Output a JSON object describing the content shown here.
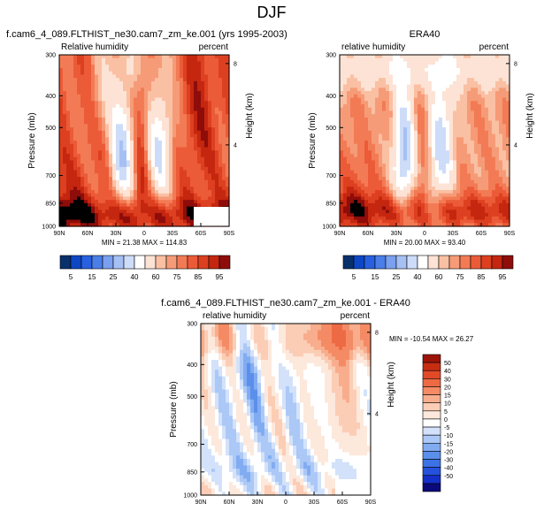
{
  "figure_title": "DJF",
  "palettes": {
    "abs": [
      "#08306b",
      "#0d47c4",
      "#2860e0",
      "#4a7fe8",
      "#7aa0ef",
      "#a6c0f4",
      "#cddcf8",
      "#ffffff",
      "#fde3d5",
      "#fac0a3",
      "#f69b77",
      "#f27b55",
      "#ec5b38",
      "#dd4020",
      "#c4260f",
      "#8e0d0a"
    ],
    "diff": [
      "#0a0a7a",
      "#1530c8",
      "#2452dd",
      "#3c72e6",
      "#5b8fec",
      "#82acf1",
      "#abc8f6",
      "#d3e2fa",
      "#ffffff",
      "#fde8dc",
      "#fbcdb5",
      "#f8ad8d",
      "#f48b65",
      "#ee6a44",
      "#e24a27",
      "#c82d12",
      "#9c1408"
    ]
  },
  "panels": [
    {
      "id": "model",
      "title_left": "f.cam6_4_089.FLTHIST_ne30.cam7_zm_ke.001 (yrs 1995-2003)",
      "title_center": "",
      "label_left": "Relative humidity",
      "label_right": "percent",
      "ylabel": "Pressure (mb)",
      "y2label": "Height (km)",
      "stats": "MIN = 21.38  MAX = 114.83",
      "minmax": "",
      "palette": "abs"
    },
    {
      "id": "obs",
      "title_left": "",
      "title_center": "ERA40",
      "label_left": "relative humidity",
      "label_right": "percent",
      "ylabel": "Pressure (mb)",
      "y2label": "Height (km)",
      "stats": "MIN = 20.00  MAX = 93.40",
      "minmax": "",
      "palette": "abs"
    },
    {
      "id": "diff",
      "title_left": "",
      "title_center": "f.cam6_4_089.FLTHIST_ne30.cam7_zm_ke.001 - ERA40",
      "label_left": "relative humidity",
      "label_right": "percent",
      "ylabel": "Pressure (mb)",
      "y2label": "Height (km)",
      "stats": "",
      "minmax": "MIN = -10.54  MAX = 26.27",
      "palette": "diff"
    }
  ],
  "chart_data": [
    {
      "type": "heatmap",
      "title": "f.cam6_4_089.FLTHIST_ne30.cam7_zm_ke.001 (yrs 1995-2003)",
      "variable": "Relative humidity",
      "units": "percent",
      "xlabel": "",
      "ylabel": "Pressure (mb)",
      "y2label": "Height (km)",
      "xlim": [
        90,
        -90
      ],
      "ylim": [
        1000,
        300
      ],
      "x_ticks": [
        "90N",
        "60N",
        "30N",
        "0",
        "30S",
        "60S",
        "90S"
      ],
      "y_ticks": [
        "300",
        "400",
        "500",
        "700",
        "850",
        "1000"
      ],
      "y2_ticks": [
        "8",
        "4"
      ],
      "contour_levels": [
        5,
        10,
        15,
        20,
        25,
        30,
        40,
        50,
        60,
        65,
        70,
        75,
        80,
        85,
        90,
        95
      ],
      "colorbar_labels": [
        "5",
        "15",
        "25",
        "40",
        "60",
        "75",
        "85",
        "95"
      ],
      "min": 21.38,
      "max": 114.83
    },
    {
      "type": "heatmap",
      "title": "ERA40",
      "variable": "relative humidity",
      "units": "percent",
      "xlabel": "",
      "ylabel": "Pressure (mb)",
      "y2label": "Height (km)",
      "xlim": [
        90,
        -90
      ],
      "ylim": [
        1000,
        300
      ],
      "x_ticks": [
        "90N",
        "60N",
        "30N",
        "0",
        "30S",
        "60S",
        "90S"
      ],
      "y_ticks": [
        "300",
        "400",
        "500",
        "700",
        "850",
        "1000"
      ],
      "y2_ticks": [
        "8",
        "4"
      ],
      "contour_levels": [
        5,
        10,
        15,
        20,
        25,
        30,
        40,
        50,
        60,
        65,
        70,
        75,
        80,
        85,
        90,
        95
      ],
      "colorbar_labels": [
        "5",
        "15",
        "25",
        "40",
        "60",
        "75",
        "85",
        "95"
      ],
      "min": 20.0,
      "max": 93.4
    },
    {
      "type": "heatmap",
      "title": "f.cam6_4_089.FLTHIST_ne30.cam7_zm_ke.001 - ERA40",
      "variable": "relative humidity",
      "units": "percent",
      "xlabel": "",
      "ylabel": "Pressure (mb)",
      "y2label": "Height (km)",
      "xlim": [
        90,
        -90
      ],
      "ylim": [
        1000,
        300
      ],
      "x_ticks": [
        "90N",
        "60N",
        "30N",
        "0",
        "30S",
        "60S",
        "90S"
      ],
      "y_ticks": [
        "300",
        "400",
        "500",
        "700",
        "850",
        "1000"
      ],
      "y2_ticks": [
        "8",
        "4"
      ],
      "contour_levels": [
        -50,
        -40,
        -30,
        -20,
        -15,
        -10,
        -5,
        0,
        5,
        10,
        15,
        20,
        30,
        40,
        50
      ],
      "colorbar_labels": [
        "50",
        "40",
        "30",
        "20",
        "15",
        "10",
        "5",
        "0",
        "-5",
        "-10",
        "-15",
        "-20",
        "-30",
        "-40",
        "-50"
      ],
      "min": -10.54,
      "max": 26.27
    }
  ]
}
